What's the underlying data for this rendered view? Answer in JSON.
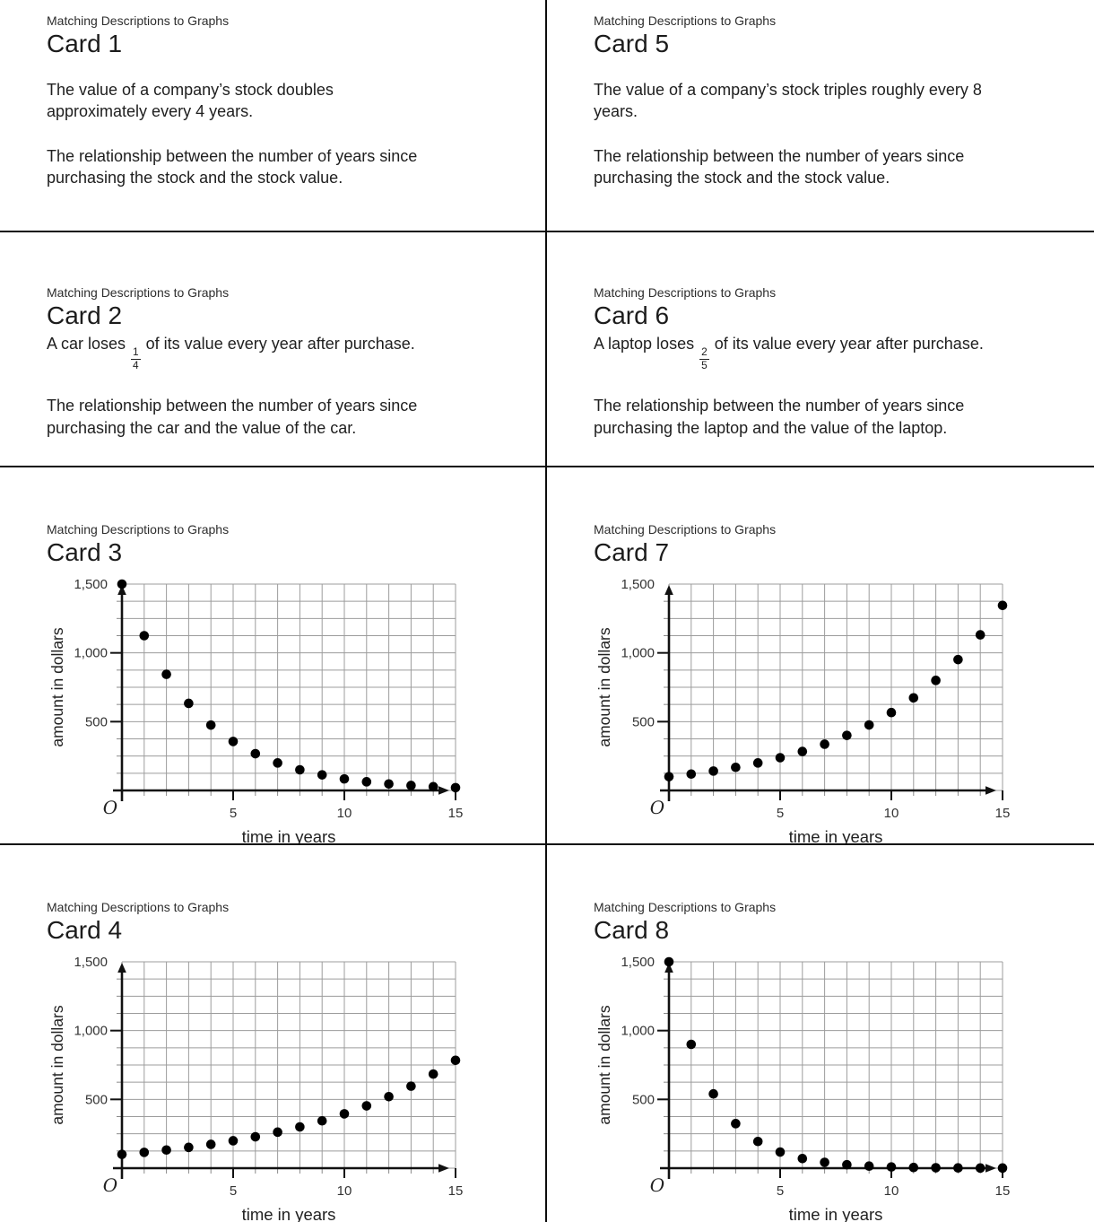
{
  "page": {
    "kicker": "Matching Descriptions to Graphs"
  },
  "cards": {
    "c1": {
      "title": "Card 1",
      "p1": "The value of a company’s stock doubles\napproximately every 4 years.",
      "p2": "The relationship between the number of years since\npurchasing the stock and the stock value."
    },
    "c2": {
      "title": "Card 2",
      "loss_sentence": {
        "pre": "A car loses",
        "numerator": "1",
        "denominator": "4",
        "post": "of its value every year after purchase."
      },
      "p2": "The relationship between the number of years since\npurchasing the car and the value of the car."
    },
    "c3": {
      "title": "Card 3"
    },
    "c4": {
      "title": "Card 4"
    },
    "c5": {
      "title": "Card 5",
      "p1": "The value of a company’s stock triples roughly every 8\nyears.",
      "p2": "The relationship between the number of years since\npurchasing the stock and the stock value."
    },
    "c6": {
      "title": "Card 6",
      "loss_sentence": {
        "pre": "A laptop loses",
        "numerator": "2",
        "denominator": "5",
        "post": "of its value every year after purchase."
      },
      "p2": "The relationship between the number of years since\npurchasing the laptop and the value of the laptop."
    },
    "c7": {
      "title": "Card 7"
    },
    "c8": {
      "title": "Card 8"
    }
  },
  "chart_data": [
    {
      "type": "scatter",
      "card": "Card 3",
      "xlabel": "time in years",
      "ylabel": "amount in dollars",
      "xlim": [
        0,
        15
      ],
      "ylim": [
        0,
        1500
      ],
      "x_grid_step": 1,
      "y_grid_step": 125,
      "x_ticks": [
        {
          "v": 5,
          "label": "5"
        },
        {
          "v": 10,
          "label": "10"
        },
        {
          "v": 15,
          "label": "15"
        }
      ],
      "y_ticks": [
        {
          "v": 500,
          "label": "500"
        },
        {
          "v": 1000,
          "label": "1,000"
        },
        {
          "v": 1500,
          "label": "1,500"
        }
      ],
      "origin_label": "O",
      "point_color": "#000000",
      "x": [
        0,
        1,
        2,
        3,
        4,
        5,
        6,
        7,
        8,
        9,
        10,
        11,
        12,
        13,
        14,
        15
      ],
      "y": [
        1500,
        1125,
        844,
        633,
        475,
        356,
        267,
        200,
        150,
        113,
        84,
        63,
        47,
        36,
        27,
        20
      ]
    },
    {
      "type": "scatter",
      "card": "Card 7",
      "xlabel": "time in years",
      "ylabel": "amount in dollars",
      "xlim": [
        0,
        15
      ],
      "ylim": [
        0,
        1500
      ],
      "x_grid_step": 1,
      "y_grid_step": 125,
      "x_ticks": [
        {
          "v": 5,
          "label": "5"
        },
        {
          "v": 10,
          "label": "10"
        },
        {
          "v": 15,
          "label": "15"
        }
      ],
      "y_ticks": [
        {
          "v": 500,
          "label": "500"
        },
        {
          "v": 1000,
          "label": "1,000"
        },
        {
          "v": 1500,
          "label": "1,500"
        }
      ],
      "origin_label": "O",
      "point_color": "#000000",
      "x": [
        0,
        1,
        2,
        3,
        4,
        5,
        6,
        7,
        8,
        9,
        10,
        11,
        12,
        13,
        14,
        15
      ],
      "y": [
        100,
        119,
        141,
        168,
        200,
        238,
        283,
        336,
        400,
        476,
        566,
        673,
        800,
        951,
        1131,
        1345
      ]
    },
    {
      "type": "scatter",
      "card": "Card 4",
      "xlabel": "time in years",
      "ylabel": "amount in dollars",
      "xlim": [
        0,
        15
      ],
      "ylim": [
        0,
        1500
      ],
      "x_grid_step": 1,
      "y_grid_step": 125,
      "x_ticks": [
        {
          "v": 5,
          "label": "5"
        },
        {
          "v": 10,
          "label": "10"
        },
        {
          "v": 15,
          "label": "15"
        }
      ],
      "y_ticks": [
        {
          "v": 500,
          "label": "500"
        },
        {
          "v": 1000,
          "label": "1,000"
        },
        {
          "v": 1500,
          "label": "1,500"
        }
      ],
      "origin_label": "O",
      "point_color": "#000000",
      "x": [
        0,
        1,
        2,
        3,
        4,
        5,
        6,
        7,
        8,
        9,
        10,
        11,
        12,
        13,
        14,
        15
      ],
      "y": [
        100,
        115,
        132,
        151,
        173,
        199,
        228,
        262,
        300,
        344,
        395,
        453,
        520,
        596,
        684,
        784
      ]
    },
    {
      "type": "scatter",
      "card": "Card 8",
      "xlabel": "time in years",
      "ylabel": "amount in dollars",
      "xlim": [
        0,
        15
      ],
      "ylim": [
        0,
        1500
      ],
      "x_grid_step": 1,
      "y_grid_step": 125,
      "x_ticks": [
        {
          "v": 5,
          "label": "5"
        },
        {
          "v": 10,
          "label": "10"
        },
        {
          "v": 15,
          "label": "15"
        }
      ],
      "y_ticks": [
        {
          "v": 500,
          "label": "500"
        },
        {
          "v": 1000,
          "label": "1,000"
        },
        {
          "v": 1500,
          "label": "1,500"
        }
      ],
      "origin_label": "O",
      "point_color": "#000000",
      "x": [
        0,
        1,
        2,
        3,
        4,
        5,
        6,
        7,
        8,
        9,
        10,
        11,
        12,
        13,
        14,
        15
      ],
      "y": [
        1500,
        900,
        540,
        324,
        194,
        117,
        70,
        42,
        25,
        15,
        9,
        5,
        3,
        2,
        1,
        1
      ]
    }
  ]
}
